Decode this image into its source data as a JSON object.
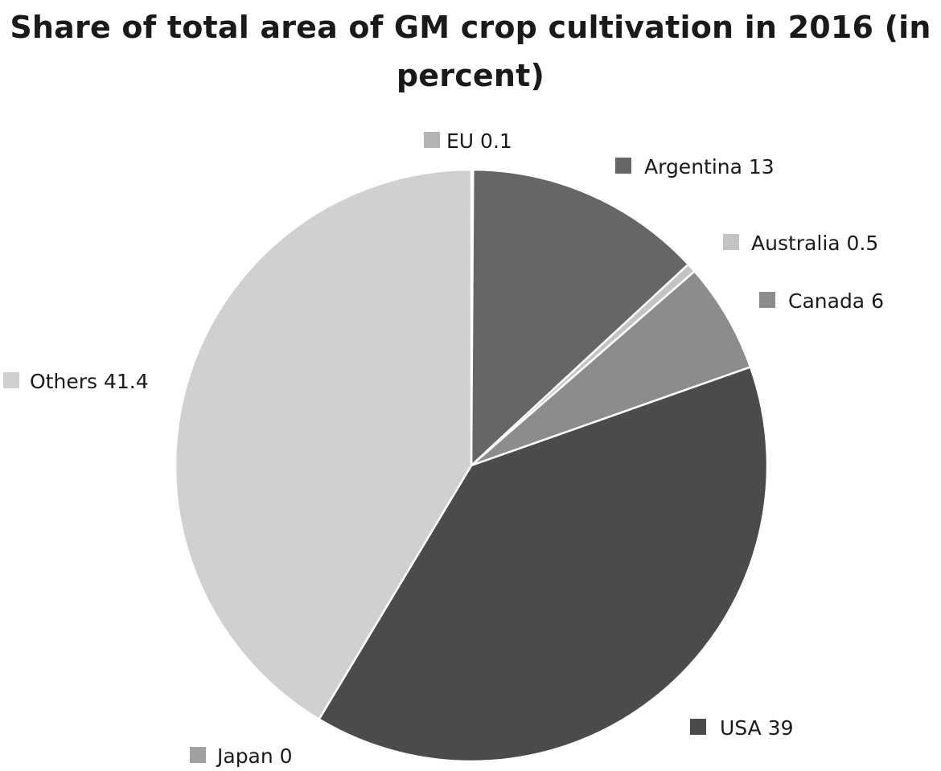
{
  "chart_data": {
    "type": "pie",
    "title": "Share of total area of GM crop cultivation in 2016 (in percent)",
    "slices": [
      {
        "label": "EU 0.1",
        "name": "EU",
        "value": 0.1,
        "color": "#b4b4b4"
      },
      {
        "label": "Argentina 13",
        "name": "Argentina",
        "value": 13,
        "color": "#666666"
      },
      {
        "label": "Australia 0.5",
        "name": "Australia",
        "value": 0.5,
        "color": "#c3c3c3"
      },
      {
        "label": "Canada 6",
        "name": "Canada",
        "value": 6,
        "color": "#8c8c8c"
      },
      {
        "label": "USA 39",
        "name": "USA",
        "value": 39,
        "color": "#4b4b4b"
      },
      {
        "label": "Japan 0",
        "name": "Japan",
        "value": 0,
        "color": "#a0a0a0"
      },
      {
        "label": "Others 41.4",
        "name": "Others",
        "value": 41.4,
        "color": "#d0d0d0"
      }
    ],
    "start_angle_deg": 0,
    "direction": "clockwise",
    "legend": "data-labels-around-pie"
  }
}
